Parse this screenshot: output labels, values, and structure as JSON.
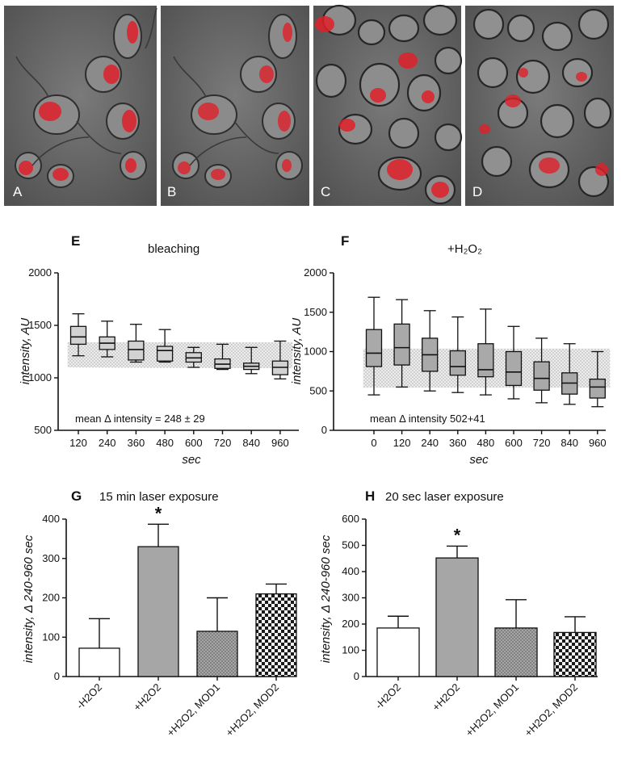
{
  "micrographs": {
    "panels": [
      "A",
      "B",
      "C",
      "D"
    ],
    "colors": {
      "background": "#6d6d6d",
      "cell_outline": "#2a2a2a",
      "cell_interior": "#8a8a8a",
      "stain": "#e0202a"
    }
  },
  "panel_letters": {
    "E": "E",
    "F": "F",
    "G": "G",
    "H": "H"
  },
  "panel_titles": {
    "E": "bleaching",
    "F": "+H₂O₂",
    "G": "15 min laser exposure",
    "H": "20 sec laser exposure"
  },
  "annotations": {
    "E_mean": "mean Δ intensity = 248 ± 29",
    "F_mean": "mean Δ intensity  502+41",
    "star": "*"
  },
  "axis_titles": {
    "box_y": "intensity, AU",
    "box_x": "sec",
    "bar_y": "intensity, Δ 240-960 sec"
  },
  "chart_data": [
    {
      "id": "E",
      "type": "box",
      "title": "bleaching",
      "xlabel": "sec",
      "ylabel": "intensity, AU",
      "ylim": [
        500,
        2000
      ],
      "yticks": [
        500,
        1000,
        1500,
        2000
      ],
      "categories": [
        "120",
        "240",
        "360",
        "480",
        "600",
        "720",
        "840",
        "960"
      ],
      "boxes": [
        {
          "min": 1210,
          "q1": 1320,
          "median": 1390,
          "q3": 1490,
          "max": 1610
        },
        {
          "min": 1200,
          "q1": 1270,
          "median": 1330,
          "q3": 1390,
          "max": 1540
        },
        {
          "min": 1150,
          "q1": 1170,
          "median": 1270,
          "q3": 1350,
          "max": 1510
        },
        {
          "min": 1150,
          "q1": 1160,
          "median": 1260,
          "q3": 1300,
          "max": 1460
        },
        {
          "min": 1100,
          "q1": 1150,
          "median": 1190,
          "q3": 1240,
          "max": 1290
        },
        {
          "min": 1080,
          "q1": 1090,
          "median": 1130,
          "q3": 1180,
          "max": 1320
        },
        {
          "min": 1040,
          "q1": 1080,
          "median": 1110,
          "q3": 1140,
          "max": 1290
        },
        {
          "min": 990,
          "q1": 1030,
          "median": 1100,
          "q3": 1160,
          "max": 1350
        }
      ],
      "band": {
        "y_top_start": 1340,
        "y_top_end": 1340,
        "y_bottom_start": 1100,
        "y_bottom_end": 1090
      },
      "annotation": "mean Δ intensity = 248 ± 29",
      "box_fill": "#d2d2d2"
    },
    {
      "id": "F",
      "type": "box",
      "title": "+H₂O₂",
      "xlabel": "sec",
      "ylabel": "intensity, AU",
      "ylim": [
        0,
        2000
      ],
      "yticks": [
        0,
        500,
        1000,
        1500,
        2000
      ],
      "categories": [
        "0",
        "120",
        "240",
        "360",
        "480",
        "600",
        "720",
        "840",
        "960"
      ],
      "boxes": [
        {
          "min": 450,
          "q1": 810,
          "median": 980,
          "q3": 1280,
          "max": 1690
        },
        {
          "min": 550,
          "q1": 830,
          "median": 1050,
          "q3": 1350,
          "max": 1660
        },
        {
          "min": 500,
          "q1": 750,
          "median": 960,
          "q3": 1170,
          "max": 1520
        },
        {
          "min": 480,
          "q1": 700,
          "median": 810,
          "q3": 1010,
          "max": 1440
        },
        {
          "min": 450,
          "q1": 680,
          "median": 770,
          "q3": 1100,
          "max": 1540
        },
        {
          "min": 400,
          "q1": 570,
          "median": 740,
          "q3": 1000,
          "max": 1320
        },
        {
          "min": 350,
          "q1": 510,
          "median": 660,
          "q3": 870,
          "max": 1170
        },
        {
          "min": 330,
          "q1": 460,
          "median": 600,
          "q3": 730,
          "max": 1100
        },
        {
          "min": 300,
          "q1": 410,
          "median": 550,
          "q3": 650,
          "max": 1000
        }
      ],
      "band": {
        "y_top_start": 1040,
        "y_top_end": 1040,
        "y_bottom_start": 540,
        "y_bottom_end": 540
      },
      "annotation": "mean Δ intensity  502+41",
      "box_fill": "#a9a9a9"
    },
    {
      "id": "G",
      "type": "bar",
      "title": "15 min laser exposure",
      "ylabel": "intensity, Δ 240-960 sec",
      "ylim": [
        0,
        400
      ],
      "yticks": [
        0,
        100,
        200,
        300,
        400
      ],
      "categories": [
        "-H2O2",
        "+H2O2",
        "+H2O2, MOD1",
        "+H2O2, MOD2"
      ],
      "values": [
        72,
        330,
        115,
        210
      ],
      "errors": [
        75,
        57,
        85,
        25
      ],
      "patterns": [
        "white",
        "gray",
        "dots",
        "checker"
      ],
      "significant": [
        false,
        true,
        false,
        false
      ]
    },
    {
      "id": "H",
      "type": "bar",
      "title": "20 sec laser exposure",
      "ylabel": "intensity, Δ 240-960 sec",
      "ylim": [
        0,
        600
      ],
      "yticks": [
        0,
        100,
        200,
        300,
        400,
        500,
        600
      ],
      "categories": [
        "-H2O2",
        "+H2O2",
        "+H2O2, MOD1",
        "+H2O2, MOD2"
      ],
      "values": [
        185,
        452,
        185,
        168
      ],
      "errors": [
        45,
        45,
        108,
        60
      ],
      "patterns": [
        "white",
        "gray",
        "dots",
        "checker"
      ],
      "significant": [
        false,
        true,
        false,
        false
      ]
    }
  ]
}
